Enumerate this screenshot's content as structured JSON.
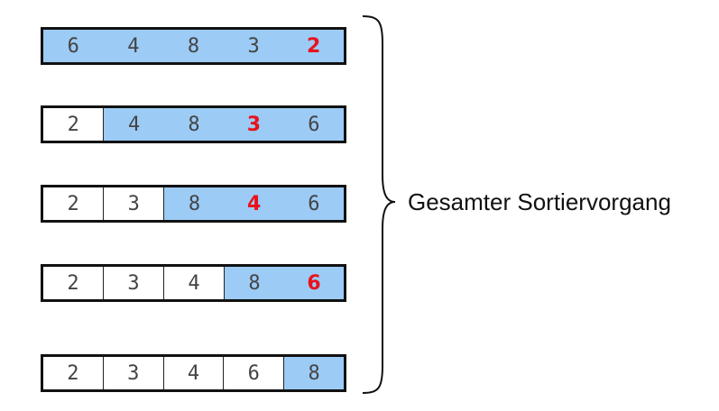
{
  "rows": [
    {
      "cells": [
        "6",
        "4",
        "8",
        "3",
        "2"
      ],
      "sorted_count": 0,
      "min_index": 4
    },
    {
      "cells": [
        "2",
        "4",
        "8",
        "3",
        "6"
      ],
      "sorted_count": 1,
      "min_index": 3
    },
    {
      "cells": [
        "2",
        "3",
        "8",
        "4",
        "6"
      ],
      "sorted_count": 2,
      "min_index": 3
    },
    {
      "cells": [
        "2",
        "3",
        "4",
        "8",
        "6"
      ],
      "sorted_count": 3,
      "min_index": 4
    },
    {
      "cells": [
        "2",
        "3",
        "4",
        "6",
        "8"
      ],
      "sorted_count": 4,
      "min_index": null
    }
  ],
  "label": "Gesamter Sortiervorgang",
  "colors": {
    "unsorted": "#9ccbf6",
    "minimum": "#e8131b",
    "sorted": "#ffffff"
  }
}
